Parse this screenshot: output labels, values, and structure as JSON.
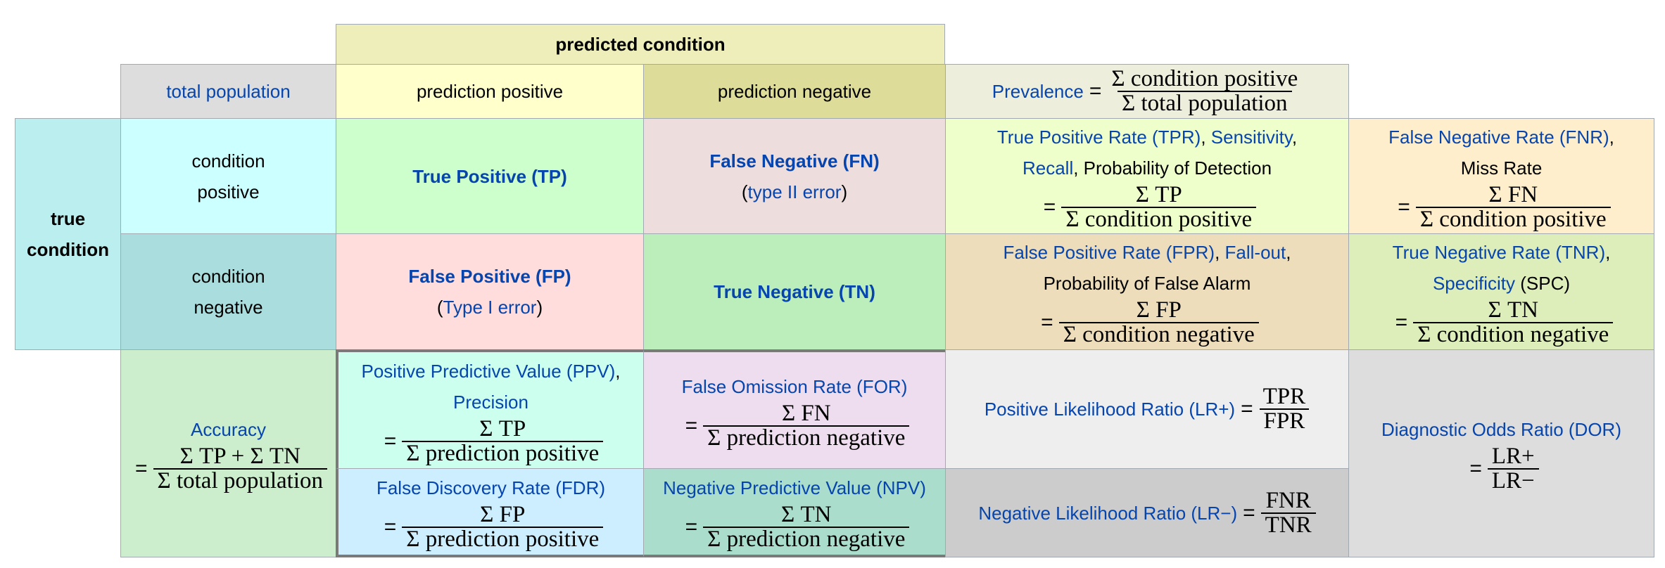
{
  "header": {
    "predicted_condition": "predicted condition",
    "total_population": "total population",
    "prediction_positive": "prediction positive",
    "prediction_negative": "prediction negative",
    "true_condition_line1": "true",
    "true_condition_line2": "condition"
  },
  "prevalence": {
    "label": "Prevalence",
    "eq": "=",
    "num": "Σ condition positive",
    "den": "Σ total population"
  },
  "rows": {
    "cond_pos_line1": "condition",
    "cond_pos_line2": "positive",
    "cond_neg_line1": "condition",
    "cond_neg_line2": "negative"
  },
  "cells": {
    "tp": "True Positive (TP)",
    "fn": "False Negative (FN)",
    "fn_error_open": "(",
    "fn_error": "type II error",
    "fn_error_close": ")",
    "fp": "False Positive (FP)",
    "fp_error_open": "(",
    "fp_error": "Type I error",
    "fp_error_close": ")",
    "tn": "True Negative (TN)"
  },
  "tpr": {
    "l1a": "True Positive Rate (TPR)",
    "l1b": ", ",
    "l1c": "Sensitivity",
    "l1d": ",",
    "l2a": "Recall",
    "l2b": ", Probability of Detection",
    "eq": "=",
    "num": "Σ TP",
    "den": "Σ condition positive"
  },
  "fnr": {
    "l1a": "False Negative Rate (FNR)",
    "l1b": ",",
    "l2": "Miss Rate",
    "eq": "=",
    "num": "Σ FN",
    "den": "Σ condition positive"
  },
  "fpr": {
    "l1a": "False Positive Rate (FPR)",
    "l1b": ", ",
    "l1c": "Fall-out",
    "l1d": ",",
    "l2": "Probability of False Alarm",
    "eq": "=",
    "num": "Σ FP",
    "den": "Σ condition negative"
  },
  "tnr": {
    "l1a": "True Negative Rate (TNR)",
    "l1b": ",",
    "l2a": "Specificity",
    "l2b": " (SPC)",
    "eq": "=",
    "num": "Σ TN",
    "den": "Σ condition negative"
  },
  "accuracy": {
    "label": "Accuracy",
    "eq": "=",
    "num": "Σ TP + Σ TN",
    "den": "Σ total population"
  },
  "ppv": {
    "l1a": "Positive Predictive Value (PPV)",
    "l1b": ",",
    "l2": "Precision",
    "eq": "=",
    "num": "Σ TP",
    "den": "Σ prediction positive"
  },
  "for": {
    "label": "False Omission Rate (FOR)",
    "eq": "=",
    "num": "Σ FN",
    "den": "Σ prediction negative"
  },
  "lrp": {
    "label": "Positive Likelihood Ratio (LR+)",
    "eq": "=",
    "num": "TPR",
    "den": "FPR"
  },
  "dor": {
    "label": "Diagnostic Odds Ratio (DOR)",
    "eq": "=",
    "num": "LR+",
    "den": "LR−"
  },
  "fdr": {
    "label": "False Discovery Rate (FDR)",
    "eq": "=",
    "num": "Σ FP",
    "den": "Σ prediction positive"
  },
  "npv": {
    "label": "Negative Predictive Value (NPV)",
    "eq": "=",
    "num": "Σ TN",
    "den": "Σ prediction negative"
  },
  "lrn": {
    "label": "Negative Likelihood Ratio (LR−)",
    "eq": "=",
    "num": "FNR",
    "den": "TNR"
  },
  "colors": {
    "predicted_condition": "#eeeebb",
    "total_population": "#dddddd",
    "prediction_positive": "#ffffcc",
    "prediction_negative": "#dddd99",
    "prevalence": "#eeeedd",
    "true_condition": "#bbeeee",
    "condition_positive": "#ccffff",
    "condition_negative": "#aadddd",
    "tp": "#ccffcc",
    "fn": "#eedddd",
    "fp": "#ffdddd",
    "tn": "#bbeebb",
    "tpr": "#eeffcc",
    "fnr": "#ffeecc",
    "fpr": "#eeddbb",
    "tnr": "#ddeebb",
    "accuracy": "#cceecc",
    "ppv": "#ccffee",
    "for": "#eeddee",
    "lr_pos": "#eeeeee",
    "dor": "#dddddd",
    "fdr": "#cceeff",
    "npv": "#aaddcc",
    "lr_neg": "#cccccc"
  }
}
